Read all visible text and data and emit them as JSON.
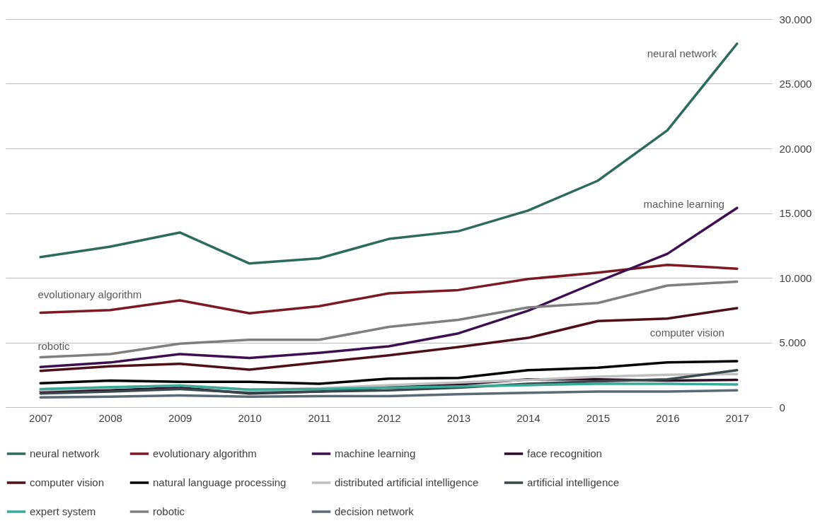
{
  "chart_data": {
    "type": "line",
    "x": [
      2007,
      2008,
      2009,
      2010,
      2011,
      2012,
      2013,
      2014,
      2015,
      2016,
      2017
    ],
    "xlim": [
      2006.5,
      2017.5
    ],
    "xticks": [
      2007,
      2008,
      2009,
      2010,
      2011,
      2012,
      2013,
      2014,
      2015,
      2016,
      2017
    ],
    "ylim": [
      0,
      30000
    ],
    "yticks": [
      0,
      {
        "value": 5000,
        "label": "5.000"
      },
      {
        "value": 10000,
        "label": "10.000"
      },
      {
        "value": 15000,
        "label": "15.000"
      },
      {
        "value": 20000,
        "label": "20.000"
      },
      {
        "value": 25000,
        "label": "25.000"
      },
      {
        "value": 30000,
        "label": "30.000"
      }
    ],
    "grid": "y",
    "legend": "bottom",
    "line_style": "solid",
    "marker": "none",
    "series": [
      {
        "name": "neural network",
        "color": "#2e6b5e",
        "values": [
          11600,
          12400,
          13500,
          11100,
          11500,
          13000,
          13600,
          15200,
          17500,
          21400,
          28100
        ]
      },
      {
        "name": "evolutionary algorithm",
        "color": "#7b1a24",
        "values": [
          7300,
          7500,
          8250,
          7250,
          7800,
          8800,
          9050,
          9900,
          10400,
          11000,
          10700
        ]
      },
      {
        "name": "machine learning",
        "color": "#3d0f50",
        "values": [
          3100,
          3450,
          4100,
          3800,
          4200,
          4700,
          5700,
          7450,
          9700,
          11850,
          15400
        ]
      },
      {
        "name": "face recognition",
        "color": "#2b0d26",
        "values": [
          1200,
          1300,
          1500,
          1050,
          1200,
          1550,
          1750,
          2150,
          2150,
          2050,
          2100
        ]
      },
      {
        "name": "computer vision",
        "color": "#4e0f18",
        "values": [
          2800,
          3150,
          3350,
          2900,
          3450,
          4000,
          4650,
          5350,
          6650,
          6850,
          7650
        ]
      },
      {
        "name": "natural language processing",
        "color": "#000000",
        "values": [
          1850,
          2050,
          1950,
          1950,
          1800,
          2200,
          2250,
          2850,
          3050,
          3450,
          3550
        ]
      },
      {
        "name": "distributed artificial intelligence",
        "color": "#bfbfbf",
        "values": [
          1300,
          1500,
          1700,
          1350,
          1450,
          1700,
          1900,
          2100,
          2350,
          2500,
          2550
        ]
      },
      {
        "name": "artificial intelligence",
        "color": "#3a474c",
        "values": [
          1050,
          1200,
          1400,
          1100,
          1200,
          1300,
          1500,
          1800,
          2000,
          2150,
          2850
        ]
      },
      {
        "name": "expert system",
        "color": "#3aaa98",
        "values": [
          1400,
          1550,
          1650,
          1350,
          1400,
          1500,
          1600,
          1700,
          1800,
          1800,
          1750
        ]
      },
      {
        "name": "robotic",
        "color": "#7f7f7f",
        "values": [
          3850,
          4100,
          4900,
          5200,
          5200,
          6200,
          6750,
          7700,
          8050,
          9400,
          9700
        ]
      },
      {
        "name": "decision network",
        "color": "#5a6b75",
        "values": [
          750,
          800,
          900,
          800,
          850,
          850,
          1000,
          1100,
          1200,
          1200,
          1300
        ]
      }
    ],
    "annotations": [
      "neural network",
      "machine learning",
      "evolutionary algorithm",
      "robotic",
      "computer vision"
    ]
  }
}
